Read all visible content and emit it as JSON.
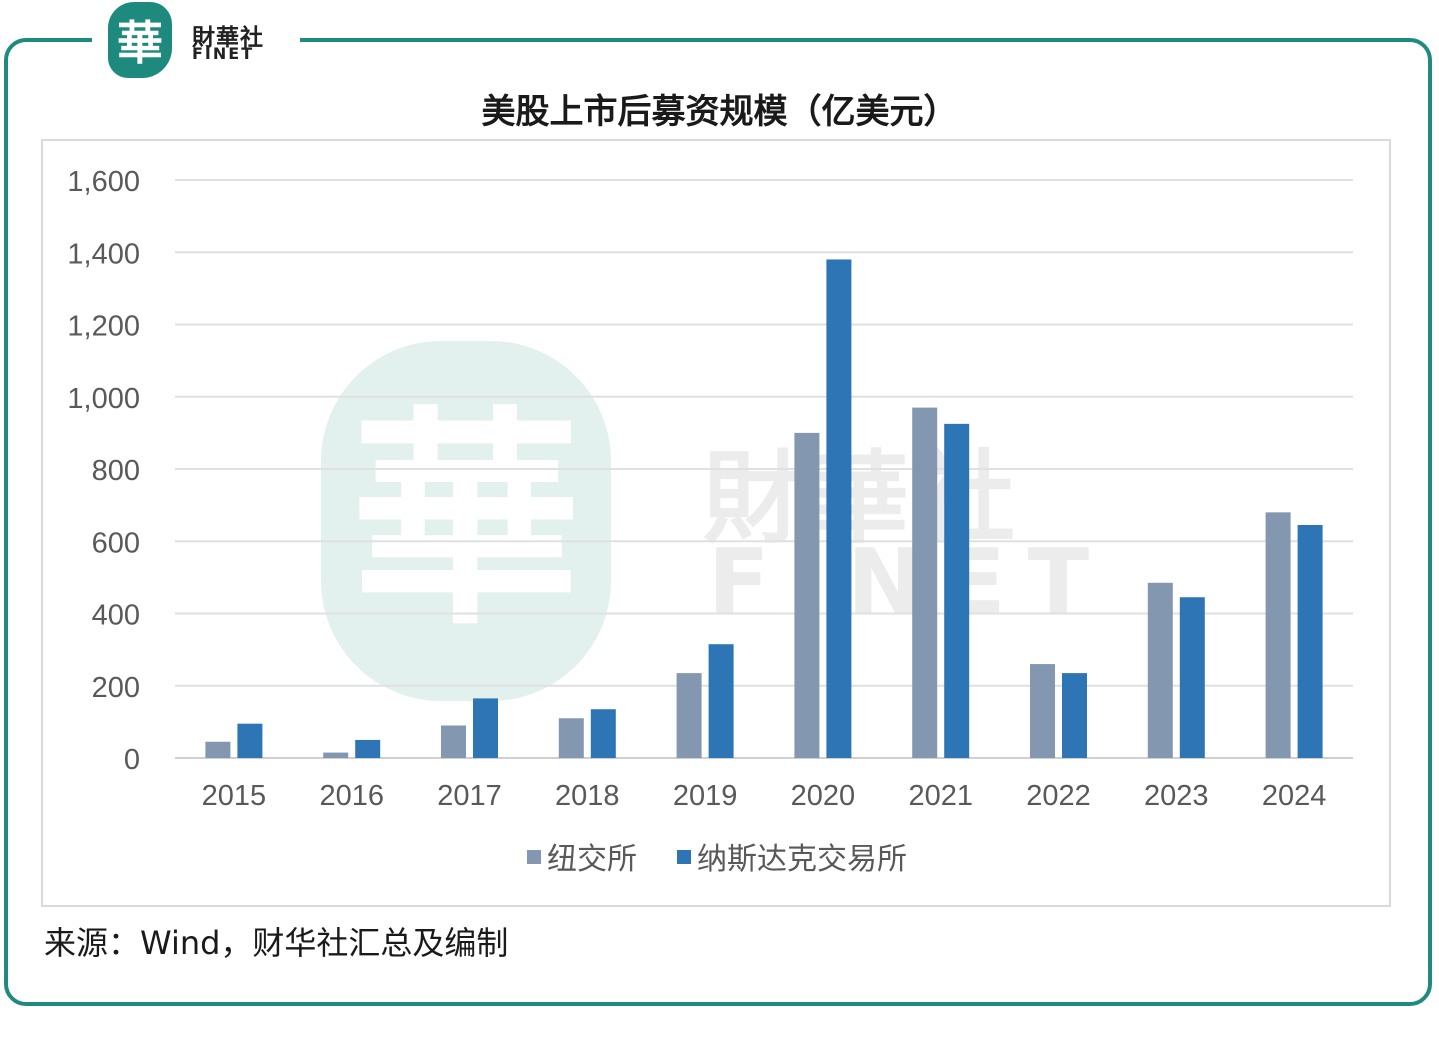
{
  "logo": {
    "seal_char": "華",
    "name_cn": "財華社",
    "name_en": "FINET"
  },
  "watermark": {
    "seal_char": "華",
    "name_cn": "財華社",
    "name_en": "FINET"
  },
  "chart_data": {
    "type": "bar",
    "title": "美股上市后募资规模（亿美元）",
    "categories": [
      "2015",
      "2016",
      "2017",
      "2018",
      "2019",
      "2020",
      "2021",
      "2022",
      "2023",
      "2024"
    ],
    "series": [
      {
        "name": "纽交所",
        "color": "#8497b0",
        "values": [
          45,
          15,
          90,
          110,
          235,
          900,
          970,
          260,
          485,
          680
        ]
      },
      {
        "name": "纳斯达克交易所",
        "color": "#2e75b6",
        "values": [
          95,
          50,
          165,
          135,
          315,
          1380,
          925,
          235,
          445,
          645
        ]
      }
    ],
    "ylim": [
      0,
      1600
    ],
    "yticks": [
      0,
      200,
      400,
      600,
      800,
      1000,
      1200,
      1400,
      1600
    ],
    "ytick_labels": [
      "0",
      "200",
      "400",
      "600",
      "800",
      "1,000",
      "1,200",
      "1,400",
      "1,600"
    ],
    "grid": true,
    "legend_position": "bottom"
  },
  "source": "来源：Wind，财华社汇总及编制"
}
